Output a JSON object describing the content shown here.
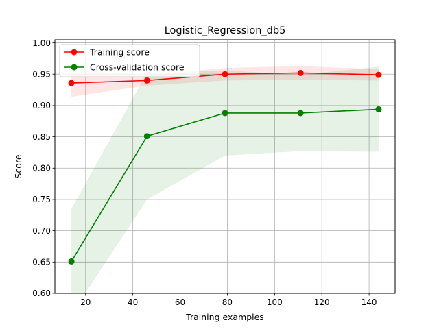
{
  "chart_data": {
    "type": "line",
    "title": "Logistic_Regression_db5",
    "xlabel": "Training examples",
    "ylabel": "Score",
    "xlim": [
      7,
      151
    ],
    "ylim": [
      0.6,
      1.005
    ],
    "xticks": [
      20,
      40,
      60,
      80,
      100,
      120,
      140
    ],
    "xtick_labels": [
      "20",
      "40",
      "60",
      "80",
      "100",
      "120",
      "140"
    ],
    "yticks": [
      0.6,
      0.65,
      0.7,
      0.75,
      0.8,
      0.85,
      0.9,
      0.95,
      1.0
    ],
    "ytick_labels": [
      "0.60",
      "0.65",
      "0.70",
      "0.75",
      "0.80",
      "0.85",
      "0.90",
      "0.95",
      "1.00"
    ],
    "grid": true,
    "legend_position": "top-left",
    "x": [
      14,
      46,
      79,
      111,
      144
    ],
    "series": [
      {
        "name": "Training score",
        "color": "#ff0000",
        "band_color": "#ff0000",
        "values": [
          0.936,
          0.94,
          0.95,
          0.952,
          0.949
        ],
        "lower": [
          0.914,
          0.932,
          0.94,
          0.941,
          0.94
        ],
        "upper": [
          0.958,
          0.948,
          0.96,
          0.963,
          0.958
        ]
      },
      {
        "name": "Cross-validation score",
        "color": "#008000",
        "band_color": "#008000",
        "values": [
          0.651,
          0.851,
          0.888,
          0.888,
          0.894
        ],
        "lower": [
          0.567,
          0.75,
          0.82,
          0.827,
          0.826
        ],
        "upper": [
          0.735,
          0.952,
          0.956,
          0.949,
          0.962
        ]
      }
    ]
  }
}
